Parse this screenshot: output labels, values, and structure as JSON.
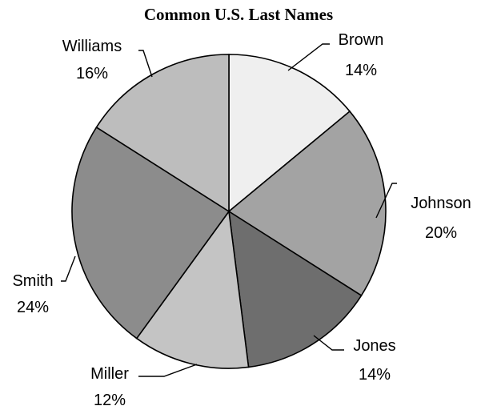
{
  "chart_data": {
    "type": "pie",
    "title": "Common U.S. Last Names",
    "slices": [
      {
        "label": "Brown",
        "value": 14,
        "value_text": "14%",
        "color": "#efefef"
      },
      {
        "label": "Johnson",
        "value": 20,
        "value_text": "20%",
        "color": "#a3a3a3"
      },
      {
        "label": "Jones",
        "value": 14,
        "value_text": "14%",
        "color": "#6e6e6e"
      },
      {
        "label": "Miller",
        "value": 12,
        "value_text": "12%",
        "color": "#c4c4c4"
      },
      {
        "label": "Smith",
        "value": 24,
        "value_text": "24%",
        "color": "#8c8c8c"
      },
      {
        "label": "Williams",
        "value": 16,
        "value_text": "16%",
        "color": "#bdbdbd"
      }
    ]
  }
}
